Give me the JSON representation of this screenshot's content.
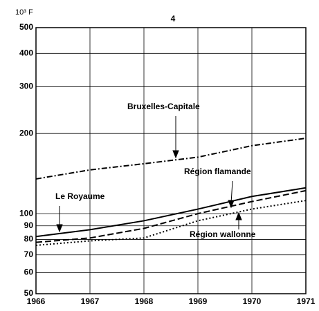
{
  "chart_data": {
    "type": "line",
    "title": "4",
    "y_unit": "10³ F",
    "log_y": true,
    "grid": true,
    "x": [
      1966,
      1967,
      1968,
      1969,
      1970,
      1971
    ],
    "xlim": [
      1966,
      1971
    ],
    "xticks": [
      1966,
      1967,
      1968,
      1969,
      1970,
      1971
    ],
    "ylim": [
      50,
      500
    ],
    "yticks": [
      50,
      60,
      70,
      80,
      90,
      100,
      200,
      300,
      400,
      500
    ],
    "series": [
      {
        "name": "Bruxelles-Capitale",
        "color": "#000000",
        "style": "dashdot",
        "values": [
          135,
          146,
          154,
          163,
          180,
          192
        ]
      },
      {
        "name": "Le Royaume",
        "color": "#000000",
        "style": "solid",
        "values": [
          82,
          87,
          94,
          104,
          116,
          125
        ]
      },
      {
        "name": "Région flamande",
        "color": "#000000",
        "style": "dashed",
        "values": [
          78,
          81,
          88,
          100,
          111,
          122
        ]
      },
      {
        "name": "Région wallonne",
        "color": "#000000",
        "style": "dotted",
        "values": [
          76,
          79,
          81,
          94,
          104,
          112
        ]
      }
    ]
  }
}
